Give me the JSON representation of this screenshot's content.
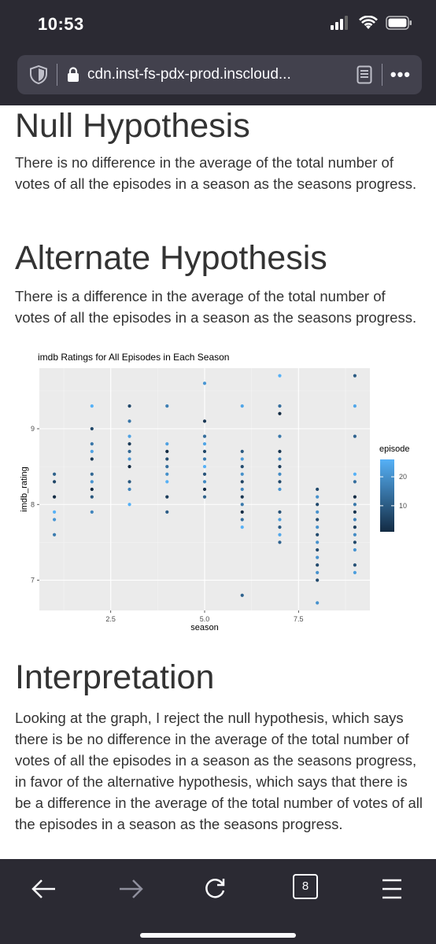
{
  "status": {
    "time": "10:53"
  },
  "browser": {
    "url": "cdn.inst-fs-pdx-prod.inscloud...",
    "tab_count": "8"
  },
  "sections": {
    "null_title": "Null Hypothesis",
    "null_text": "There is no difference in the average of the total number of votes of all the episodes in a season as the seasons progress.",
    "alt_title": "Alternate Hypothesis",
    "alt_text": "There is a difference in the average of the total number of votes of all the episodes in a season as the seasons progress.",
    "interp_title": "Interpretation",
    "interp_text": "Looking at the graph, I reject the null hypothesis, which says there is be no difference in the average of the total number of votes of all the episodes in a season as the seasons progress, in favor of the alternative hypothesis, which says that there is be a difference in the average of the total number of votes of all the episodes in a season as the seasons progress."
  },
  "chart_data": {
    "type": "scatter",
    "title": "imdb Ratings for All Episodes in Each Season",
    "xlabel": "season",
    "ylabel": "imdb_rating",
    "xlim": [
      0.6,
      9.4
    ],
    "ylim": [
      6.6,
      9.8
    ],
    "xticks": [
      2.5,
      5.0,
      7.5
    ],
    "xtick_labels": [
      "2.5",
      "5.0",
      "7.5"
    ],
    "yticks": [
      7,
      8,
      9
    ],
    "ytick_labels": [
      "7",
      "8",
      "9"
    ],
    "grid": true,
    "legend": {
      "title": "episode",
      "position": "right",
      "ticks": [
        10,
        20
      ],
      "tick_labels": [
        "10",
        "20"
      ],
      "range": [
        1,
        26
      ]
    },
    "colors": {
      "low": "#132b43",
      "high": "#56b1f7",
      "panel": "#ebebeb",
      "gridline": "#ffffff"
    },
    "seasons": [
      {
        "season": 1,
        "ratings": [
          7.6,
          7.8,
          7.9,
          8.1,
          8.3,
          8.4
        ]
      },
      {
        "season": 2,
        "ratings": [
          7.9,
          8.1,
          8.2,
          8.3,
          8.4,
          8.6,
          8.7,
          8.8,
          9.0,
          9.3
        ]
      },
      {
        "season": 3,
        "ratings": [
          8.0,
          8.2,
          8.3,
          8.5,
          8.6,
          8.7,
          8.8,
          8.9,
          9.1,
          9.3
        ]
      },
      {
        "season": 4,
        "ratings": [
          7.9,
          8.1,
          8.3,
          8.4,
          8.5,
          8.6,
          8.7,
          8.8,
          9.3
        ]
      },
      {
        "season": 5,
        "ratings": [
          8.1,
          8.2,
          8.3,
          8.4,
          8.5,
          8.6,
          8.7,
          8.8,
          8.9,
          9.1,
          9.6
        ]
      },
      {
        "season": 6,
        "ratings": [
          6.8,
          7.7,
          7.8,
          7.9,
          8.0,
          8.1,
          8.2,
          8.3,
          8.4,
          8.5,
          8.6,
          8.7,
          9.3
        ]
      },
      {
        "season": 7,
        "ratings": [
          7.5,
          7.6,
          7.7,
          7.8,
          7.9,
          8.2,
          8.3,
          8.4,
          8.5,
          8.6,
          8.7,
          8.9,
          9.2,
          9.3,
          9.7
        ]
      },
      {
        "season": 8,
        "ratings": [
          6.7,
          7.0,
          7.1,
          7.2,
          7.3,
          7.4,
          7.5,
          7.6,
          7.7,
          7.8,
          7.9,
          8.0,
          8.1,
          8.2
        ]
      },
      {
        "season": 9,
        "ratings": [
          7.1,
          7.2,
          7.4,
          7.5,
          7.6,
          7.7,
          7.8,
          7.9,
          8.0,
          8.1,
          8.3,
          8.4,
          8.9,
          9.3,
          9.7
        ]
      }
    ]
  }
}
